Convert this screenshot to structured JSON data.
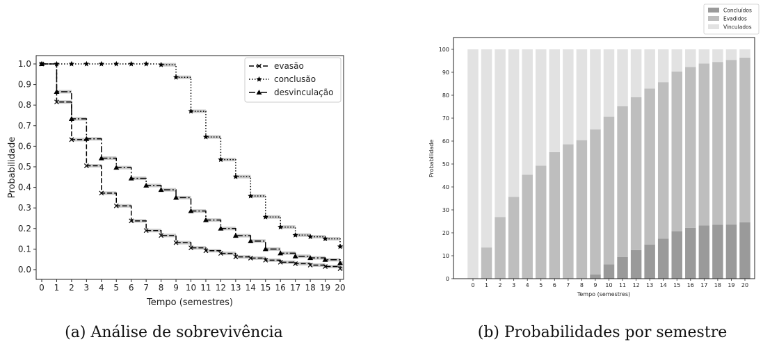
{
  "panels": {
    "left_caption": "(a) Análise de sobrevivência",
    "right_caption": "(b) Probabilidades por semestre"
  },
  "chart_data": [
    {
      "type": "line",
      "style": "step",
      "xlabel": "Tempo (semestres)",
      "ylabel": "Probabilidade",
      "xlim": [
        0,
        20
      ],
      "ylim": [
        0.0,
        1.0
      ],
      "x_ticks": [
        0,
        1,
        2,
        3,
        4,
        5,
        6,
        7,
        8,
        9,
        10,
        11,
        12,
        13,
        14,
        15,
        16,
        17,
        18,
        19,
        20
      ],
      "y_ticks": [
        0.0,
        0.1,
        0.2,
        0.3,
        0.4,
        0.5,
        0.6,
        0.7,
        0.8,
        0.9,
        1.0
      ],
      "legend_position": "top-right",
      "grid": false,
      "confidence_band": true,
      "x": [
        0,
        1,
        2,
        3,
        4,
        5,
        6,
        7,
        8,
        9,
        10,
        11,
        12,
        13,
        14,
        15,
        16,
        17,
        18,
        19,
        20
      ],
      "series": [
        {
          "name": "evasão",
          "marker": "x",
          "dash": "dashed",
          "values": [
            1.0,
            0.815,
            0.632,
            0.505,
            0.372,
            0.31,
            0.237,
            0.19,
            0.166,
            0.131,
            0.106,
            0.092,
            0.079,
            0.062,
            0.056,
            0.046,
            0.036,
            0.029,
            0.022,
            0.015,
            0.005
          ]
        },
        {
          "name": "conclusão",
          "marker": "star",
          "dash": "dotted",
          "values": [
            1.0,
            1.0,
            1.0,
            1.0,
            1.0,
            1.0,
            1.0,
            1.0,
            0.996,
            0.935,
            0.77,
            0.645,
            0.535,
            0.452,
            0.358,
            0.256,
            0.207,
            0.168,
            0.16,
            0.15,
            0.112
          ]
        },
        {
          "name": "desvinculação",
          "marker": "triangle",
          "dash": "dashdot",
          "values": [
            1.0,
            0.865,
            0.733,
            0.636,
            0.542,
            0.496,
            0.444,
            0.409,
            0.388,
            0.35,
            0.285,
            0.241,
            0.2,
            0.165,
            0.139,
            0.1,
            0.08,
            0.065,
            0.057,
            0.048,
            0.032
          ]
        }
      ]
    },
    {
      "type": "bar",
      "stacked": true,
      "xlabel": "Tempo (semestres)",
      "ylabel": "Probabilidade",
      "ylim": [
        0,
        100
      ],
      "y_ticks": [
        0,
        10,
        20,
        30,
        40,
        50,
        60,
        70,
        80,
        90,
        100
      ],
      "legend_position": "top-right",
      "grid": false,
      "categories": [
        "0",
        "1",
        "2",
        "3",
        "4",
        "5",
        "6",
        "7",
        "8",
        "9",
        "10",
        "11",
        "12",
        "13",
        "14",
        "15",
        "16",
        "17",
        "18",
        "19",
        "20"
      ],
      "series": [
        {
          "name": "Concluídos",
          "color": "#9a9a9a",
          "values": [
            0,
            0,
            0,
            0,
            0,
            0,
            0,
            0,
            0,
            1.8,
            6.2,
            9.4,
            12.5,
            14.9,
            17.5,
            20.7,
            22.2,
            23.2,
            23.5,
            23.6,
            24.6
          ]
        },
        {
          "name": "Evadidos",
          "color": "#bebebe",
          "values": [
            0,
            13.6,
            26.9,
            35.7,
            45.3,
            49.3,
            55.2,
            58.6,
            60.4,
            63.3,
            64.5,
            65.8,
            66.6,
            68.0,
            68.2,
            69.6,
            70.1,
            70.6,
            71.0,
            71.8,
            71.8
          ]
        },
        {
          "name": "Vinculados",
          "color": "#e2e2e2",
          "values": [
            100,
            86.4,
            73.1,
            64.3,
            54.7,
            50.7,
            44.8,
            41.4,
            39.6,
            34.9,
            29.3,
            24.8,
            20.9,
            17.1,
            14.3,
            9.7,
            7.7,
            6.2,
            5.5,
            4.6,
            3.6
          ]
        }
      ]
    }
  ]
}
